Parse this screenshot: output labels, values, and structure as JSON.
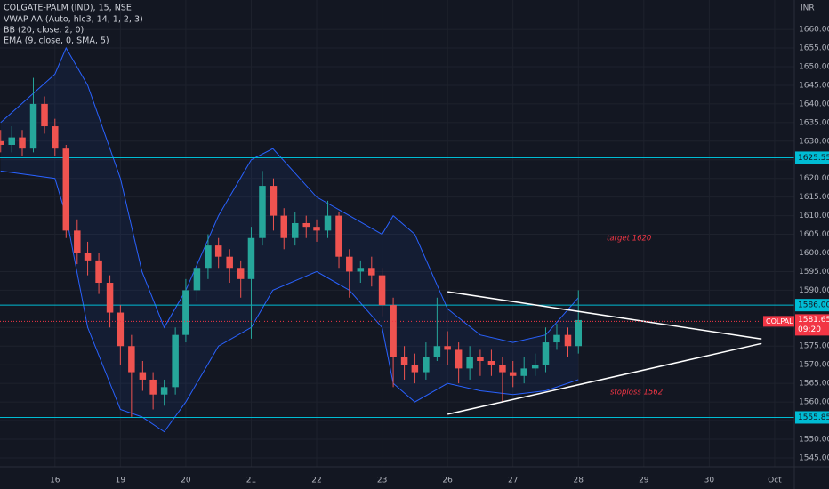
{
  "chart_data": {
    "type": "candlestick",
    "title": "COLGATE-PALM (IND), 15, NSE",
    "indicators": [
      "VWAP AA (Auto, hlc3, 14, 1, 2, 3)",
      "BB (20, close, 2, 0)",
      "EMA (9, close, 0, SMA, 5)"
    ],
    "currency": "INR",
    "x": [
      -0.83,
      -0.66,
      -0.5,
      -0.33,
      -0.16,
      0.0,
      0.17,
      0.34,
      0.5,
      0.67,
      0.84,
      1.0,
      1.17,
      1.34,
      1.5,
      1.67,
      1.84,
      2.0,
      2.17,
      2.34,
      2.5,
      2.67,
      2.84,
      3.0,
      3.17,
      3.34,
      3.5,
      3.67,
      3.84,
      4.0,
      4.17,
      4.34,
      4.5,
      4.67,
      4.84,
      5.0,
      5.17,
      5.34,
      5.5,
      5.67,
      5.84,
      6.0,
      6.17,
      6.34,
      6.5,
      6.67,
      6.84,
      7.0,
      7.17,
      7.34,
      7.5,
      7.67,
      7.84,
      8.0
    ],
    "open": [
      1630,
      1629,
      1631,
      1628,
      1640,
      1634,
      1628,
      1606,
      1600,
      1598,
      1592,
      1584,
      1575,
      1568,
      1566,
      1562,
      1564,
      1578,
      1590,
      1596,
      1602,
      1599,
      1596,
      1593,
      1604,
      1618,
      1610,
      1604,
      1608,
      1607,
      1606,
      1610,
      1599,
      1595,
      1596,
      1594,
      1586,
      1572,
      1570,
      1568,
      1572,
      1575,
      1574,
      1569,
      1572,
      1571,
      1570,
      1568,
      1567,
      1569,
      1570,
      1576,
      1578,
      1575
    ],
    "high": [
      1633,
      1634,
      1633,
      1647,
      1642,
      1636,
      1629,
      1609,
      1603,
      1600,
      1594,
      1586,
      1578,
      1571,
      1568,
      1566,
      1580,
      1593,
      1598,
      1605,
      1604,
      1601,
      1598,
      1607,
      1622,
      1620,
      1612,
      1611,
      1610,
      1609,
      1614,
      1611,
      1601,
      1598,
      1599,
      1596,
      1588,
      1575,
      1573,
      1576,
      1588,
      1579,
      1576,
      1575,
      1574,
      1574,
      1572,
      1571,
      1572,
      1573,
      1580,
      1581,
      1580,
      1590
    ],
    "low": [
      1627,
      1627,
      1626,
      1627,
      1632,
      1626,
      1604,
      1597,
      1594,
      1589,
      1580,
      1570,
      1556,
      1563,
      1558,
      1559,
      1562,
      1576,
      1587,
      1593,
      1596,
      1592,
      1588,
      1577,
      1602,
      1606,
      1601,
      1602,
      1604,
      1603,
      1604,
      1596,
      1588,
      1592,
      1591,
      1583,
      1564,
      1566,
      1565,
      1566,
      1571,
      1570,
      1565,
      1566,
      1567,
      1567,
      1560,
      1564,
      1565,
      1567,
      1568,
      1574,
      1572,
      1573
    ],
    "close": [
      1629,
      1631,
      1628,
      1640,
      1634,
      1628,
      1606,
      1600,
      1598,
      1592,
      1584,
      1575,
      1568,
      1566,
      1562,
      1564,
      1578,
      1590,
      1596,
      1602,
      1599,
      1596,
      1593,
      1604,
      1618,
      1610,
      1604,
      1608,
      1607,
      1606,
      1610,
      1599,
      1595,
      1596,
      1594,
      1586,
      1572,
      1570,
      1568,
      1572,
      1575,
      1574,
      1569,
      1572,
      1571,
      1570,
      1568,
      1567,
      1569,
      1570,
      1576,
      1578,
      1575,
      1582
    ],
    "up_color": "#26a69a",
    "down_color": "#ef5350",
    "bands": {
      "color": "#2962ff",
      "x": [
        -0.83,
        0.0,
        0.17,
        0.5,
        1.0,
        1.33,
        1.67,
        2.0,
        2.5,
        3.0,
        3.33,
        4.0,
        4.5,
        5.0,
        5.17,
        5.5,
        6.0,
        6.5,
        7.0,
        7.5,
        8.0
      ],
      "upper": [
        1635,
        1648,
        1655,
        1645,
        1620,
        1595,
        1580,
        1590,
        1610,
        1625,
        1628,
        1615,
        1610,
        1605,
        1610,
        1605,
        1585,
        1578,
        1576,
        1578,
        1588
      ],
      "lower": [
        1622,
        1620,
        1610,
        1580,
        1558,
        1556,
        1552,
        1560,
        1575,
        1580,
        1590,
        1595,
        1590,
        1580,
        1565,
        1560,
        1565,
        1563,
        1562,
        1563,
        1566
      ]
    },
    "levels": {
      "color": "#00bcd4",
      "values": [
        1625.55,
        1586,
        1555.85
      ],
      "value_labels": [
        "1625.55",
        "1586.00",
        "1555.85"
      ]
    },
    "trendlines": [
      {
        "x": [
          6.0,
          10.8
        ],
        "y": [
          1589.6,
          1576.9
        ]
      },
      {
        "x": [
          6.0,
          10.8
        ],
        "y": [
          1556.7,
          1575.7
        ]
      }
    ],
    "last": {
      "symbol": "COLPAL",
      "value": 1581.65,
      "value_label": "1581.65",
      "time": "09:20",
      "color": "#f23645"
    },
    "annotations": [
      "target 1620",
      "stoploss 1562"
    ],
    "xlim": [
      -0.84,
      11.3
    ],
    "ylim": [
      1542.6,
      1667.9
    ],
    "xticks": [
      {
        "value": 0,
        "label": "16"
      },
      {
        "value": 1,
        "label": "19"
      },
      {
        "value": 2,
        "label": "20"
      },
      {
        "value": 3,
        "label": "21"
      },
      {
        "value": 4,
        "label": "22"
      },
      {
        "value": 5,
        "label": "23"
      },
      {
        "value": 6,
        "label": "26"
      },
      {
        "value": 7,
        "label": "27"
      },
      {
        "value": 8,
        "label": "28"
      },
      {
        "value": 9,
        "label": "29"
      },
      {
        "value": 10,
        "label": "30"
      },
      {
        "value": 11,
        "label": "Oct"
      }
    ],
    "yticks": [
      {
        "value": 1545,
        "label": "1545.00"
      },
      {
        "value": 1550,
        "label": "1550.00"
      },
      {
        "value": 1555,
        "label": "1555.00"
      },
      {
        "value": 1560,
        "label": "1560.00"
      },
      {
        "value": 1565,
        "label": "1565.00"
      },
      {
        "value": 1570,
        "label": "1570.00"
      },
      {
        "value": 1575,
        "label": "1575.00"
      },
      {
        "value": 1580,
        "label": "1580.00"
      },
      {
        "value": 1585,
        "label": "1585.00"
      },
      {
        "value": 1590,
        "label": "1590.00"
      },
      {
        "value": 1595,
        "label": "1595.00"
      },
      {
        "value": 1600,
        "label": "1600.00"
      },
      {
        "value": 1605,
        "label": "1605.00"
      },
      {
        "value": 1610,
        "label": "1610.00"
      },
      {
        "value": 1615,
        "label": "1615.00"
      },
      {
        "value": 1620,
        "label": "1620.00"
      },
      {
        "value": 1625,
        "label": "1625.00"
      },
      {
        "value": 1630,
        "label": "1630.00"
      },
      {
        "value": 1635,
        "label": "1635.00"
      },
      {
        "value": 1640,
        "label": "1640.00"
      },
      {
        "value": 1645,
        "label": "1645.00"
      },
      {
        "value": 1650,
        "label": "1650.00"
      },
      {
        "value": 1655,
        "label": "1655.00"
      },
      {
        "value": 1660,
        "label": "1660.00"
      }
    ],
    "grid": true
  }
}
